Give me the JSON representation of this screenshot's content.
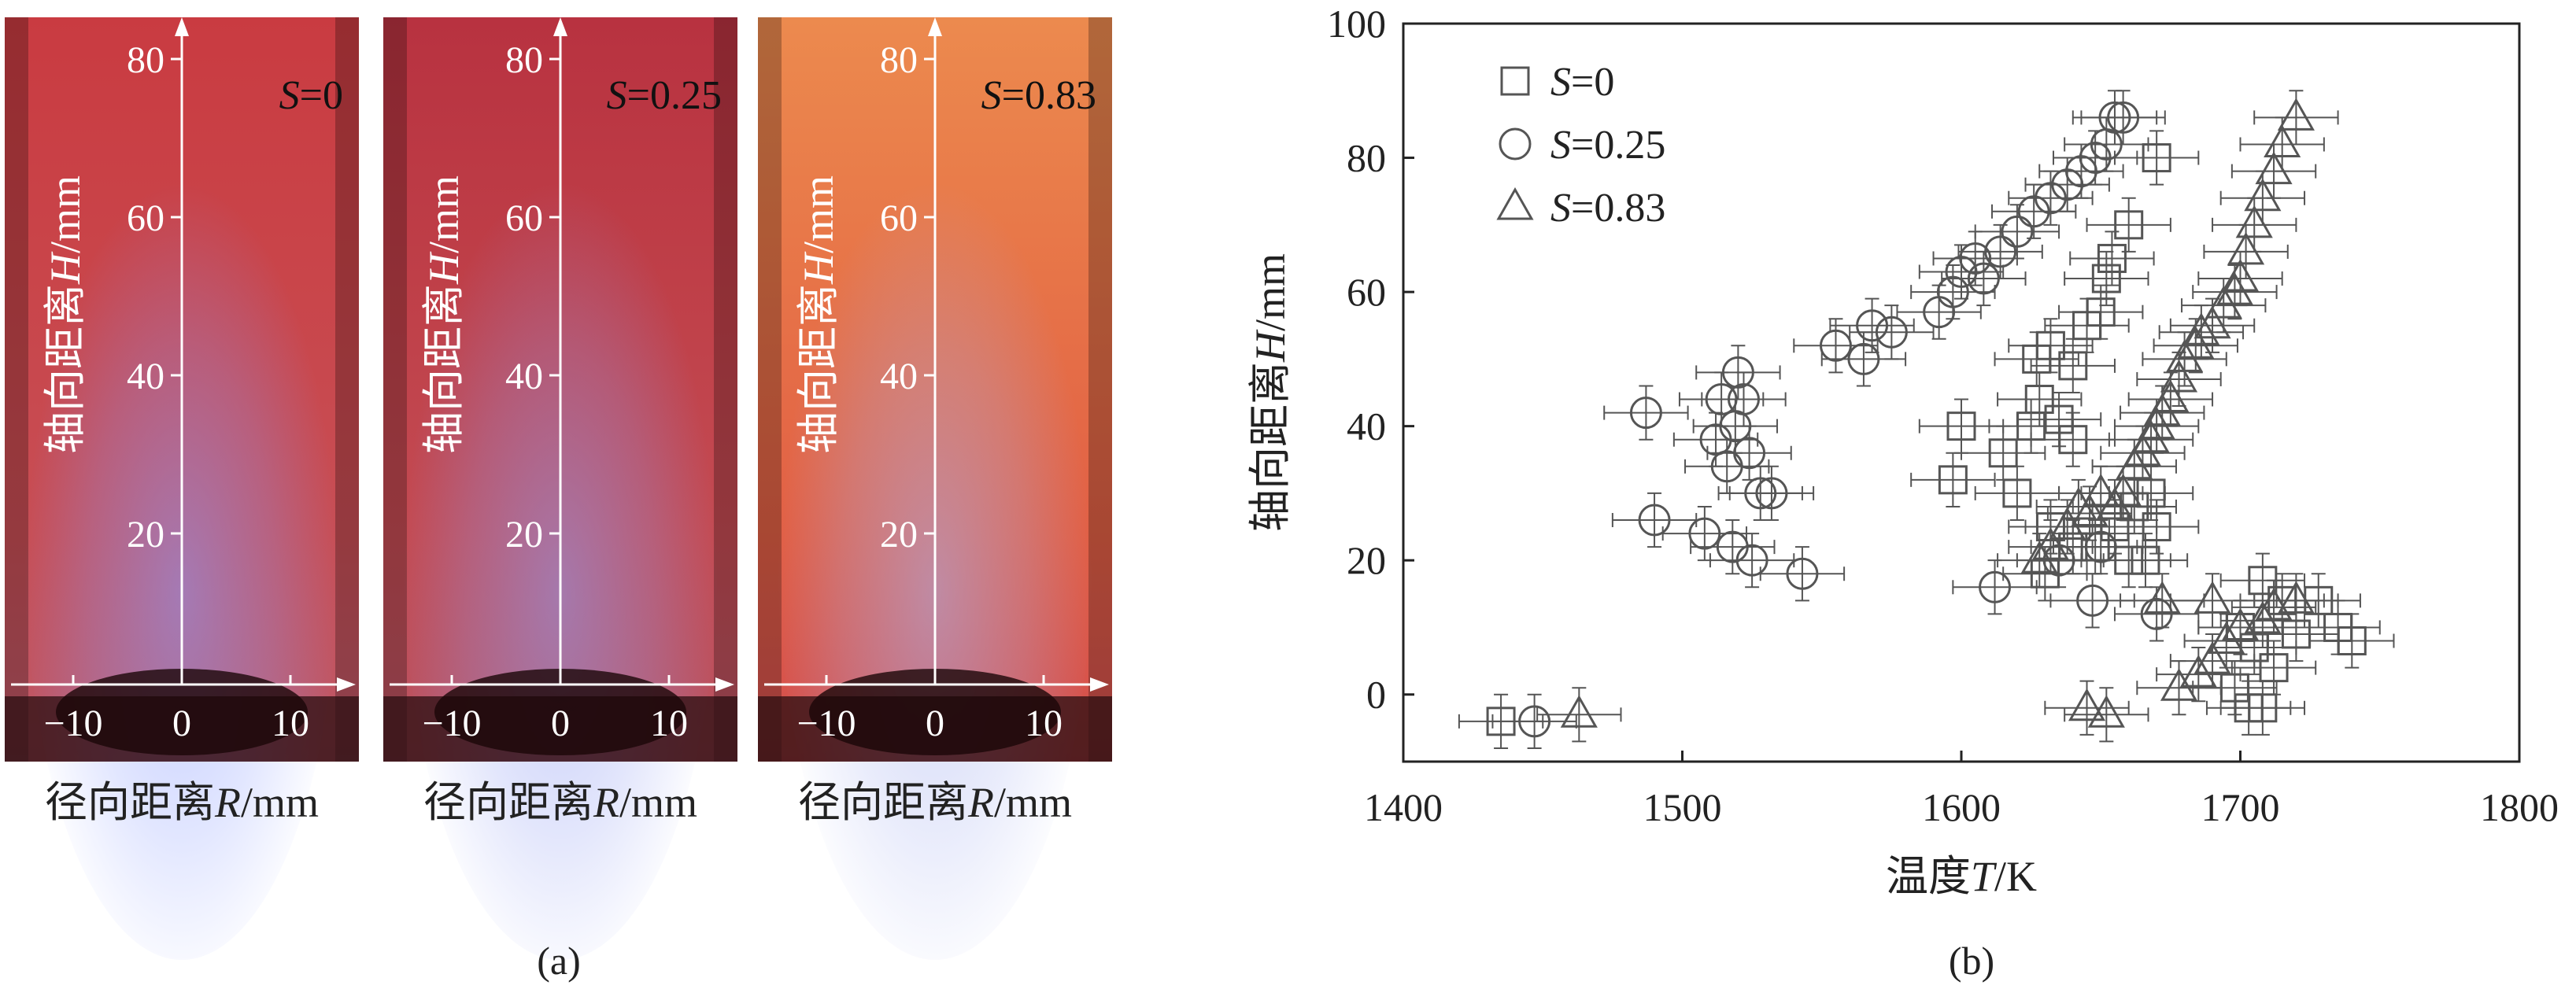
{
  "panel_a": {
    "caption": "(a)",
    "photos": [
      {
        "s_prefix": "S",
        "s_value": "=0",
        "gradient": [
          "#c93b41",
          "#c9454a",
          "#c74e55",
          "#bd5a6a"
        ],
        "glow": "#8a9cff"
      },
      {
        "s_prefix": "S",
        "s_value": "=0.25",
        "gradient": [
          "#b83240",
          "#bf3f48",
          "#c34b53",
          "#b95564"
        ],
        "glow": "#8f9cf2"
      },
      {
        "s_prefix": "S",
        "s_value": "=0.83",
        "gradient": [
          "#ec8a4e",
          "#e77448",
          "#e15f45",
          "#d24e4f"
        ],
        "glow": "#a7b2f0"
      }
    ],
    "y_label_main": "轴向距离",
    "y_label_var": "H",
    "y_label_unit": "/mm",
    "y_ticks": [
      "80",
      "60",
      "40",
      "20"
    ],
    "x_ticks": [
      "−10",
      "0",
      "10"
    ],
    "x_label_main": "径向距离",
    "x_label_var": "R",
    "x_label_unit": "/mm"
  },
  "panel_b": {
    "caption": "(b)",
    "axis_color": "#222222",
    "marker_color": "#555555"
  },
  "chart_data": {
    "type": "scatter",
    "title": "",
    "xlabel_main": "温度",
    "xlabel_var": "T",
    "xlabel_unit": "/K",
    "ylabel_main": "轴向距离",
    "ylabel_var": "H",
    "ylabel_unit": "/mm",
    "xlim": [
      1400,
      1800
    ],
    "ylim": [
      -10,
      100
    ],
    "xticks": [
      1400,
      1500,
      1600,
      1700,
      1800
    ],
    "yticks": [
      0,
      20,
      40,
      60,
      80,
      100
    ],
    "grid": false,
    "legend_position": "top-left",
    "error_bars": {
      "x_half_width": 15,
      "y_half_width": 4
    },
    "series": [
      {
        "name_prefix": "S",
        "name_value": "=0",
        "marker": "square",
        "points": [
          [
            1435,
            -4
          ],
          [
            1708,
            17
          ],
          [
            1715,
            14
          ],
          [
            1728,
            14
          ],
          [
            1735,
            10
          ],
          [
            1740,
            8
          ],
          [
            1700,
            10
          ],
          [
            1705,
            7
          ],
          [
            1712,
            4
          ],
          [
            1698,
            1
          ],
          [
            1703,
            -2
          ],
          [
            1708,
            -2
          ],
          [
            1720,
            9
          ],
          [
            1668,
            30
          ],
          [
            1662,
            28
          ],
          [
            1670,
            25
          ],
          [
            1655,
            25
          ],
          [
            1648,
            22
          ],
          [
            1640,
            22
          ],
          [
            1632,
            25
          ],
          [
            1630,
            18
          ],
          [
            1660,
            20
          ],
          [
            1666,
            20
          ],
          [
            1597,
            32
          ],
          [
            1600,
            40
          ],
          [
            1615,
            36
          ],
          [
            1620,
            30
          ],
          [
            1625,
            40
          ],
          [
            1628,
            44
          ],
          [
            1635,
            41
          ],
          [
            1640,
            38
          ],
          [
            1627,
            50
          ],
          [
            1632,
            52
          ],
          [
            1640,
            49
          ],
          [
            1645,
            55
          ],
          [
            1650,
            57
          ],
          [
            1652,
            62
          ],
          [
            1654,
            65
          ],
          [
            1660,
            70
          ],
          [
            1670,
            80
          ]
        ]
      },
      {
        "name_prefix": "S",
        "name_value": "=0.25",
        "marker": "circle",
        "points": [
          [
            1447,
            -4
          ],
          [
            1487,
            42
          ],
          [
            1490,
            26
          ],
          [
            1508,
            24
          ],
          [
            1512,
            38
          ],
          [
            1514,
            44
          ],
          [
            1516,
            34
          ],
          [
            1518,
            22
          ],
          [
            1519,
            40
          ],
          [
            1520,
            48
          ],
          [
            1522,
            44
          ],
          [
            1524,
            36
          ],
          [
            1525,
            20
          ],
          [
            1528,
            30
          ],
          [
            1532,
            30
          ],
          [
            1543,
            18
          ],
          [
            1555,
            52
          ],
          [
            1565,
            50
          ],
          [
            1568,
            55
          ],
          [
            1575,
            54
          ],
          [
            1592,
            57
          ],
          [
            1597,
            60
          ],
          [
            1600,
            63
          ],
          [
            1605,
            65
          ],
          [
            1608,
            62
          ],
          [
            1612,
            16
          ],
          [
            1614,
            66
          ],
          [
            1620,
            69
          ],
          [
            1626,
            72
          ],
          [
            1632,
            74
          ],
          [
            1638,
            76
          ],
          [
            1643,
            78
          ],
          [
            1648,
            80
          ],
          [
            1652,
            82
          ],
          [
            1655,
            86
          ],
          [
            1658,
            86
          ],
          [
            1647,
            14
          ],
          [
            1650,
            22
          ],
          [
            1670,
            12
          ],
          [
            1635,
            20
          ]
        ]
      },
      {
        "name_prefix": "S",
        "name_value": "=0.83",
        "marker": "triangle",
        "points": [
          [
            1463,
            -3
          ],
          [
            1645,
            -2
          ],
          [
            1652,
            -3
          ],
          [
            1678,
            1
          ],
          [
            1685,
            3
          ],
          [
            1690,
            5
          ],
          [
            1695,
            8
          ],
          [
            1700,
            10
          ],
          [
            1708,
            11
          ],
          [
            1712,
            13
          ],
          [
            1720,
            14
          ],
          [
            1690,
            14
          ],
          [
            1672,
            14
          ],
          [
            1628,
            20
          ],
          [
            1632,
            22
          ],
          [
            1638,
            25
          ],
          [
            1642,
            28
          ],
          [
            1646,
            27
          ],
          [
            1650,
            30
          ],
          [
            1655,
            28
          ],
          [
            1658,
            30
          ],
          [
            1662,
            34
          ],
          [
            1665,
            36
          ],
          [
            1668,
            38
          ],
          [
            1670,
            40
          ],
          [
            1672,
            42
          ],
          [
            1675,
            44
          ],
          [
            1678,
            47
          ],
          [
            1680,
            50
          ],
          [
            1684,
            52
          ],
          [
            1686,
            54
          ],
          [
            1690,
            55
          ],
          [
            1694,
            58
          ],
          [
            1698,
            60
          ],
          [
            1700,
            62
          ],
          [
            1702,
            66
          ],
          [
            1705,
            70
          ],
          [
            1708,
            74
          ],
          [
            1712,
            78
          ],
          [
            1715,
            82
          ],
          [
            1720,
            86
          ]
        ]
      }
    ]
  }
}
